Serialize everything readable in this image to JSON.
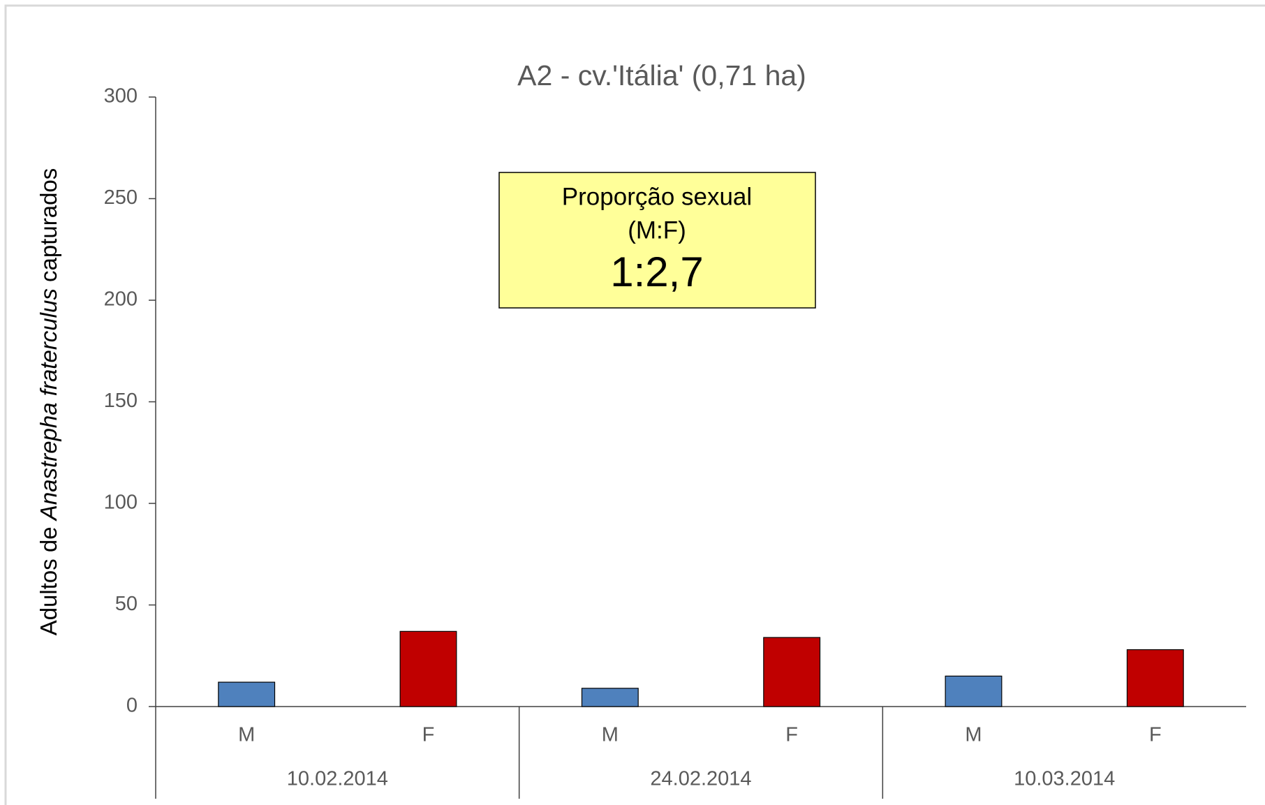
{
  "chart_data": {
    "type": "bar",
    "title": "A2 - cv.'Itália' (0,71 ha)",
    "ylabel": [
      {
        "text": "Adultos de "
      },
      {
        "text": "Anastrepha fraterculus",
        "italic": true
      },
      {
        "text": " capturados"
      }
    ],
    "categories": [
      "M",
      "F",
      "M",
      "F",
      "M",
      "F"
    ],
    "groups": [
      "10.02.2014",
      "24.02.2014",
      "10.03.2014"
    ],
    "values": [
      12,
      37,
      9,
      34,
      15,
      28
    ],
    "colors": [
      "#4f81bd",
      "#c00000",
      "#4f81bd",
      "#c00000",
      "#4f81bd",
      "#c00000"
    ],
    "ylim": [
      0,
      300
    ],
    "yticks": [
      0,
      50,
      100,
      150,
      200,
      250,
      300
    ],
    "annotation": [
      "Proporção sexual",
      "(M:F)",
      "1:2,7"
    ]
  }
}
